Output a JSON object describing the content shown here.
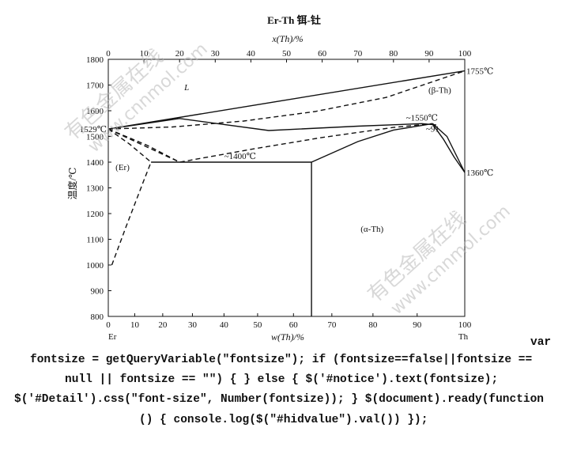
{
  "chart_data": {
    "type": "line",
    "title": "Er-Th  铒-钍",
    "top_axis_label": "x(Th)/%",
    "bottom_axis_label": "w(Th)/%",
    "ylabel": "温度/℃",
    "top_axis_ticks": [
      "0",
      "10",
      "20",
      "30",
      "40",
      "50",
      "60",
      "70",
      "80",
      "90",
      "100"
    ],
    "bottom_axis_ticks": [
      "0",
      "10",
      "20",
      "30",
      "40",
      "50",
      "60",
      "70",
      "80",
      "90",
      "100"
    ],
    "y_ticks": [
      "800",
      "900",
      "1000",
      "1100",
      "1200",
      "1300",
      "1400",
      "1500",
      "1600",
      "1700",
      "1800"
    ],
    "ylim": [
      800,
      1800
    ],
    "xlim": [
      0,
      100
    ],
    "x_axis_basis": "x(Th)/% (atomic)",
    "left_end_label": "Er",
    "right_end_label": "Th",
    "region_labels": {
      "liquid": "L",
      "beta": "(β-Th)",
      "alpha": "(α-Th)",
      "er": "(Er)"
    },
    "annotations": {
      "er_melt": "1529℃",
      "th_melt": "1755℃",
      "beta_alpha": "1360℃",
      "max_temp": "~1550℃",
      "max_comp": "~91",
      "eutectoid": "~1400℃"
    },
    "series": [
      {
        "name": "liquidus",
        "style": "solid",
        "x": [
          0,
          100
        ],
        "y": [
          1529,
          1755
        ]
      },
      {
        "name": "solidus",
        "style": "dashed",
        "x": [
          0,
          18,
          38,
          58,
          78,
          100
        ],
        "y": [
          1529,
          1537,
          1560,
          1597,
          1652,
          1755
        ]
      },
      {
        "name": "beta liquidus",
        "style": "solid",
        "x": [
          0,
          20,
          45,
          70,
          88,
          92
        ],
        "y": [
          1529,
          1570,
          1523,
          1540,
          1550,
          1545
        ]
      },
      {
        "name": "beta solidus",
        "style": "dashed",
        "x": [
          0,
          20,
          40,
          60,
          80,
          91
        ],
        "y": [
          1529,
          1400,
          1450,
          1496,
          1535,
          1550
        ]
      },
      {
        "name": "Er solvus",
        "style": "dashed",
        "x": [
          0,
          6,
          12
        ],
        "y": [
          1529,
          1470,
          1400
        ]
      },
      {
        "name": "Er solvus upper",
        "style": "dashed",
        "x": [
          0,
          11,
          20
        ],
        "y": [
          1529,
          1465,
          1400
        ]
      },
      {
        "name": "Er solid solubility",
        "style": "dashed",
        "x": [
          1,
          5,
          10,
          12
        ],
        "y": [
          1000,
          1150,
          1330,
          1400
        ]
      },
      {
        "name": "eutectoid",
        "style": "solid",
        "x": [
          12,
          57
        ],
        "y": [
          1400,
          1400
        ]
      },
      {
        "name": "alpha boundary",
        "style": "solid",
        "x": [
          57,
          70,
          80,
          91
        ],
        "y": [
          1400,
          1480,
          1525,
          1550
        ]
      },
      {
        "name": "beta/alpha right",
        "style": "solid",
        "x": [
          91,
          95,
          100
        ],
        "y": [
          1550,
          1500,
          1360
        ]
      },
      {
        "name": "beta/alpha inner",
        "style": "solid",
        "x": [
          91,
          94,
          97,
          100
        ],
        "y": [
          1547,
          1490,
          1420,
          1360
        ]
      },
      {
        "name": "alpha solvus",
        "style": "solid",
        "x": [
          57,
          57
        ],
        "y": [
          1400,
          800
        ]
      }
    ],
    "grid": false,
    "legend": "none"
  },
  "watermark": {
    "text_cn": "有色金属在线",
    "text_url": "www.cnnmol.com"
  },
  "code_text": {
    "line1": "var",
    "line2": "fontsize = getQueryVariable(\"fontsize\"); if (fontsize==false||fontsize ==",
    "line3": "null || fontsize == \"\") { } else { $('#notice').text(fontsize);",
    "line4": "$('#Detail').css(\"font-size\", Number(fontsize)); } $(document).ready(function",
    "line5": "() { console.log($(\"#hidvalue\").val()) });"
  }
}
